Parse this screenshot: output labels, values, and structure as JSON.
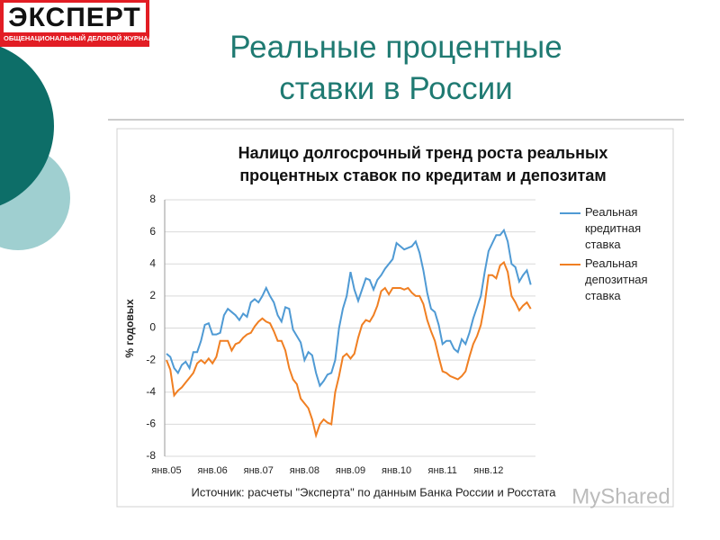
{
  "logo": {
    "name": "ЭКСПЕРТ",
    "tagline": "ОБЩЕНАЦИОНАЛЬНЫЙ ДЕЛОВОЙ ЖУРНАЛ"
  },
  "slide_title": "Реальные процентные ставки в России",
  "watermark": "MyShared",
  "chart_data": {
    "type": "line",
    "title": "Налицо долгосрочный тренд роста реальных процентных ставок по кредитам и депозитам",
    "y_label": "% годовых",
    "source": "Источник: расчеты \"Эксперта\" по данным Банка России и Росстата",
    "categories": [
      "янв.05",
      null,
      null,
      null,
      null,
      null,
      null,
      null,
      null,
      null,
      null,
      null,
      "янв.06",
      null,
      null,
      null,
      null,
      null,
      null,
      null,
      null,
      null,
      null,
      null,
      "янв.07",
      null,
      null,
      null,
      null,
      null,
      null,
      null,
      null,
      null,
      null,
      null,
      "янв.08",
      null,
      null,
      null,
      null,
      null,
      null,
      null,
      null,
      null,
      null,
      null,
      "янв.09",
      null,
      null,
      null,
      null,
      null,
      null,
      null,
      null,
      null,
      null,
      null,
      "янв.10",
      null,
      null,
      null,
      null,
      null,
      null,
      null,
      null,
      null,
      null,
      null,
      "янв.11",
      null,
      null,
      null,
      null,
      null,
      null,
      null,
      null,
      null,
      null,
      null,
      "янв.12",
      null,
      null,
      null,
      null,
      null,
      null,
      null,
      null,
      null,
      null,
      null
    ],
    "series": [
      {
        "name": "Реальная кредитная ставка",
        "color": "#4f9ad4",
        "values": [
          -1.6,
          -1.8,
          -2.5,
          -2.8,
          -2.3,
          -2.1,
          -2.5,
          -1.5,
          -1.5,
          -0.8,
          0.2,
          0.3,
          -0.4,
          -0.4,
          -0.3,
          0.8,
          1.2,
          1.0,
          0.8,
          0.5,
          0.9,
          0.7,
          1.6,
          1.8,
          1.6,
          2.0,
          2.5,
          2.0,
          1.6,
          0.8,
          0.4,
          1.3,
          1.2,
          -0.1,
          -0.5,
          -0.9,
          -2.0,
          -1.5,
          -1.7,
          -2.8,
          -3.6,
          -3.3,
          -2.9,
          -2.8,
          -2.0,
          0.0,
          1.2,
          2.0,
          3.5,
          2.4,
          1.7,
          2.4,
          3.1,
          3.0,
          2.4,
          3.0,
          3.3,
          3.7,
          4.0,
          4.3,
          5.3,
          5.1,
          4.9,
          5.0,
          5.1,
          5.4,
          4.7,
          3.6,
          2.2,
          1.2,
          1.0,
          0.2,
          -1.0,
          -0.8,
          -0.8,
          -1.3,
          -1.5,
          -0.7,
          -1.0,
          -0.3,
          0.6,
          1.3,
          2.0,
          3.5,
          4.8,
          5.3,
          5.8,
          5.8,
          6.1,
          5.4,
          4.0,
          3.8,
          2.9,
          3.3,
          3.6,
          2.7
        ]
      },
      {
        "name": "Реальная депозитная ставка",
        "color": "#f07f22",
        "values": [
          -2.0,
          -2.6,
          -4.2,
          -3.9,
          -3.7,
          -3.4,
          -3.1,
          -2.8,
          -2.2,
          -2.0,
          -2.2,
          -1.9,
          -2.2,
          -1.8,
          -0.8,
          -0.8,
          -0.8,
          -1.4,
          -1.0,
          -0.9,
          -0.6,
          -0.4,
          -0.3,
          0.1,
          0.4,
          0.6,
          0.4,
          0.3,
          -0.2,
          -0.8,
          -0.8,
          -1.4,
          -2.5,
          -3.2,
          -3.5,
          -4.4,
          -4.7,
          -5.0,
          -5.7,
          -6.7,
          -6.0,
          -5.7,
          -5.9,
          -6.0,
          -4.0,
          -3.0,
          -1.8,
          -1.6,
          -1.9,
          -1.6,
          -0.6,
          0.2,
          0.5,
          0.4,
          0.8,
          1.4,
          2.3,
          2.5,
          2.1,
          2.5,
          2.5,
          2.5,
          2.4,
          2.5,
          2.2,
          2.0,
          2.0,
          1.5,
          0.5,
          -0.2,
          -0.8,
          -1.8,
          -2.7,
          -2.8,
          -3.0,
          -3.1,
          -3.2,
          -3.0,
          -2.7,
          -1.8,
          -1.0,
          -0.5,
          0.2,
          1.5,
          3.3,
          3.3,
          3.1,
          3.9,
          4.1,
          3.5,
          2.0,
          1.6,
          1.1,
          1.4,
          1.6,
          1.2
        ]
      }
    ],
    "ylim": [
      -8,
      8
    ],
    "yticks": [
      -8,
      -6,
      -4,
      -2,
      0,
      2,
      4,
      6,
      8
    ],
    "grid": true
  }
}
